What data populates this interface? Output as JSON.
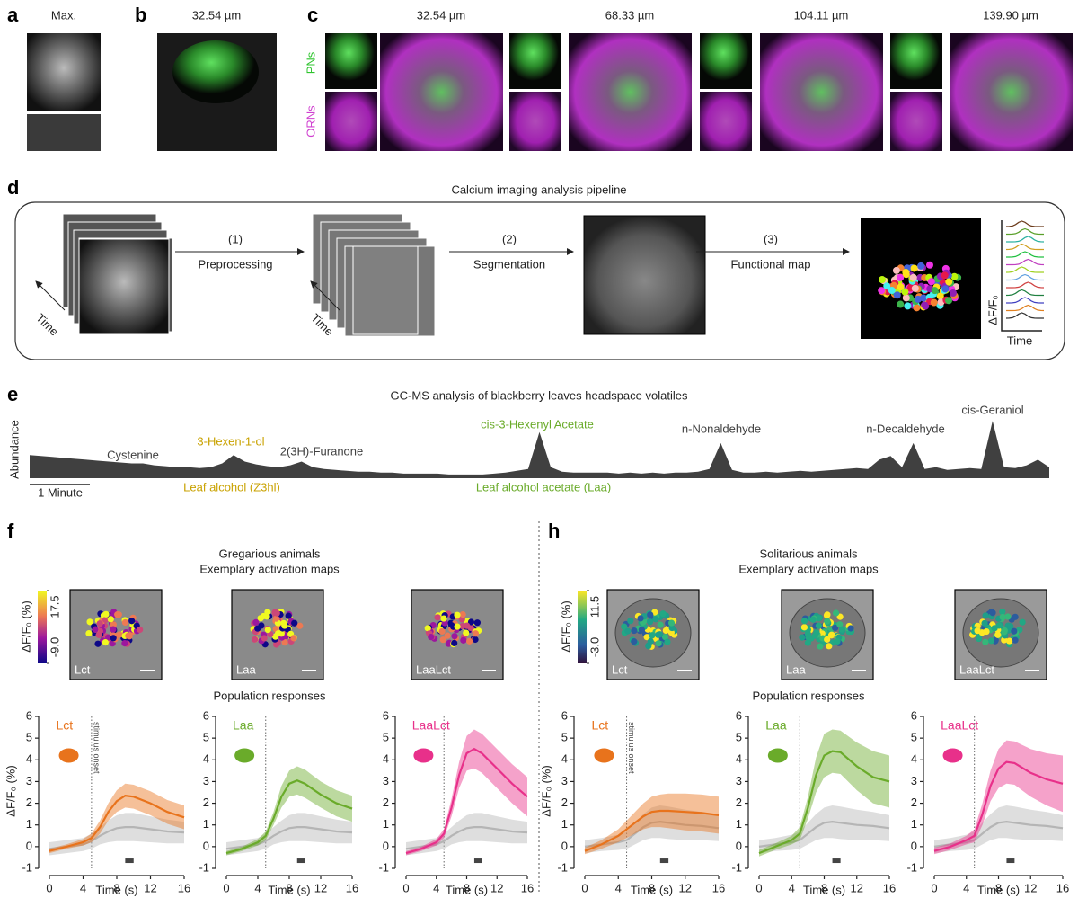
{
  "panel_labels": [
    "a",
    "b",
    "c",
    "d",
    "e",
    "f",
    "h"
  ],
  "a": {
    "label": "Max."
  },
  "b": {
    "depth": "32.54 µm"
  },
  "c": {
    "depths": [
      "32.54 µm",
      "68.33 µm",
      "104.11 µm",
      "139.90 µm"
    ],
    "channels": [
      "PNs",
      "ORNs"
    ]
  },
  "d": {
    "title": "Calcium imaging analysis pipeline",
    "steps": [
      {
        "number": "(1)",
        "name": "Preprocessing"
      },
      {
        "number": "(2)",
        "name": "Segmentation"
      },
      {
        "number": "(3)",
        "name": "Functional map"
      }
    ],
    "time": "Time",
    "trace_y": "ΔF/F₀",
    "trace_x": "Time"
  },
  "f": {
    "title": [
      "Gregarious animals",
      "Exemplary activation maps"
    ],
    "colorbar": {
      "label": "ΔF/F₀ (%)",
      "ticks": [
        17.5,
        {
          "value": -9,
          "label": "-9.0"
        }
      ]
    },
    "maps": [
      "Lct",
      "Laa",
      "LaaLct"
    ],
    "population_title": "Population responses"
  },
  "h": {
    "title": [
      "Solitarious animals",
      "Exemplary activation maps"
    ],
    "colorbar": {
      "label": "ΔF/F₀ (%)",
      "ticks": [
        11.5,
        {
          "value": -3,
          "label": "-3.0"
        }
      ]
    },
    "maps": [
      "Lct",
      "Laa",
      "LaaLct"
    ],
    "population_title": "Population responses"
  },
  "chart_data": [
    {
      "type": "area",
      "title": "GC-MS analysis of blackberry leaves headspace volatiles",
      "ylabel": "Abundance",
      "scale_label": "1 Minute",
      "color": "#404040",
      "ylim": [
        0,
        70
      ],
      "values": [
        25,
        24,
        23,
        22,
        21,
        20,
        19,
        18,
        17,
        16,
        16,
        14,
        13,
        12,
        12,
        11,
        12,
        16,
        25,
        18,
        15,
        13,
        12,
        14,
        18,
        12,
        10,
        9,
        8,
        7,
        7,
        6,
        6,
        5,
        5,
        5,
        5,
        4,
        4,
        4,
        4,
        5,
        6,
        8,
        10,
        50,
        12,
        7,
        6,
        6,
        6,
        6,
        5,
        6,
        5,
        6,
        5,
        6,
        6,
        7,
        10,
        38,
        9,
        6,
        6,
        7,
        6,
        7,
        8,
        7,
        8,
        9,
        10,
        11,
        10,
        20,
        24,
        12,
        38,
        10,
        12,
        9,
        10,
        11,
        10,
        62,
        12,
        11,
        14,
        20,
        12
      ],
      "annotations": [
        {
          "text": "Cystenine",
          "color": "#404040"
        },
        {
          "text": "3-Hexen-1-ol",
          "color": "#c9a200"
        },
        {
          "text": "2(3H)-Furanone",
          "color": "#404040"
        },
        {
          "text": "Leaf alcohol (Z3hl)",
          "color": "#c9a200"
        },
        {
          "text": "cis-3-Hexenyl Acetate",
          "color": "#6aab2a"
        },
        {
          "text": "Leaf alcohol acetate (Laa)",
          "color": "#6aab2a"
        },
        {
          "text": "n-Nonaldehyde",
          "color": "#404040"
        },
        {
          "text": "n-Decaldehyde",
          "color": "#404040"
        },
        {
          "text": "cis-Geraniol",
          "color": "#404040"
        }
      ]
    },
    {
      "type": "line",
      "xlabel": "Time (s)",
      "ylabel": "ΔF/F₀ (%)",
      "annotation": "stimulus onset",
      "stimulus_onset": 5,
      "stimulus_bar": [
        9,
        10
      ],
      "x": [
        0,
        2,
        4,
        5,
        6,
        7,
        8,
        9,
        10,
        12,
        14,
        16
      ],
      "xlim": [
        0,
        16
      ],
      "xticks": [
        0,
        4,
        8,
        12,
        16
      ],
      "ylim": [
        -1,
        6
      ],
      "yticks": [
        -1,
        0,
        1,
        2,
        3,
        4,
        5,
        6
      ],
      "series": [
        {
          "color": "#b5b5b5",
          "values": [
            -0.1,
            0,
            0.1,
            0.25,
            0.5,
            0.7,
            0.85,
            0.9,
            0.9,
            0.8,
            0.7,
            0.65
          ],
          "error": [
            0.3,
            0.3,
            0.3,
            0.35,
            0.4,
            0.5,
            0.6,
            0.65,
            0.65,
            0.6,
            0.55,
            0.5
          ]
        },
        {
          "name": "Lct",
          "color": "#e8731c",
          "values": [
            -0.2,
            0,
            0.2,
            0.4,
            0.9,
            1.6,
            2.1,
            2.35,
            2.3,
            2.0,
            1.6,
            1.35
          ],
          "error": [
            0.1,
            0.1,
            0.15,
            0.2,
            0.3,
            0.4,
            0.5,
            0.55,
            0.55,
            0.55,
            0.55,
            0.55
          ]
        }
      ]
    },
    {
      "type": "line",
      "xlabel": "Time (s)",
      "stimulus_onset": 5,
      "stimulus_bar": [
        9,
        10
      ],
      "x": [
        0,
        2,
        4,
        5,
        6,
        7,
        8,
        9,
        10,
        12,
        14,
        16
      ],
      "xlim": [
        0,
        16
      ],
      "xticks": [
        0,
        4,
        8,
        12,
        16
      ],
      "ylim": [
        -1,
        6
      ],
      "yticks": [
        -1,
        0,
        1,
        2,
        3,
        4,
        5,
        6
      ],
      "series": [
        {
          "color": "#b5b5b5",
          "values": [
            -0.1,
            0,
            0.1,
            0.25,
            0.5,
            0.7,
            0.85,
            0.9,
            0.9,
            0.8,
            0.7,
            0.65
          ],
          "error": [
            0.3,
            0.3,
            0.3,
            0.35,
            0.4,
            0.5,
            0.6,
            0.65,
            0.65,
            0.6,
            0.55,
            0.5
          ]
        },
        {
          "name": "Laa",
          "color": "#6aab2a",
          "values": [
            -0.3,
            -0.1,
            0.2,
            0.5,
            1.3,
            2.3,
            2.9,
            3.05,
            2.9,
            2.4,
            2.0,
            1.75
          ],
          "error": [
            0.1,
            0.1,
            0.15,
            0.2,
            0.3,
            0.5,
            0.6,
            0.65,
            0.65,
            0.6,
            0.6,
            0.6
          ]
        }
      ]
    },
    {
      "type": "line",
      "xlabel": "Time (s)",
      "stimulus_onset": 5,
      "stimulus_bar": [
        9,
        10
      ],
      "x": [
        0,
        2,
        4,
        5,
        6,
        7,
        8,
        9,
        10,
        12,
        14,
        16
      ],
      "xlim": [
        0,
        16
      ],
      "xticks": [
        0,
        4,
        8,
        12,
        16
      ],
      "ylim": [
        -1,
        6
      ],
      "yticks": [
        -1,
        0,
        1,
        2,
        3,
        4,
        5,
        6
      ],
      "series": [
        {
          "color": "#b5b5b5",
          "values": [
            -0.1,
            0,
            0.1,
            0.25,
            0.5,
            0.7,
            0.85,
            0.9,
            0.9,
            0.8,
            0.7,
            0.65
          ],
          "error": [
            0.3,
            0.3,
            0.3,
            0.35,
            0.4,
            0.5,
            0.6,
            0.65,
            0.65,
            0.6,
            0.55,
            0.5
          ]
        },
        {
          "name": "LaaLct",
          "color": "#e8308a",
          "values": [
            -0.3,
            -0.1,
            0.2,
            0.6,
            1.8,
            3.3,
            4.3,
            4.5,
            4.3,
            3.6,
            2.9,
            2.3
          ],
          "error": [
            0.1,
            0.1,
            0.15,
            0.2,
            0.4,
            0.6,
            0.8,
            0.9,
            0.9,
            0.9,
            0.9,
            0.9
          ]
        }
      ]
    },
    {
      "type": "line",
      "xlabel": "Time (s)",
      "ylabel": "ΔF/F₀ (%)",
      "annotation": "stimulus onset",
      "stimulus_onset": 5,
      "stimulus_bar": [
        9,
        10
      ],
      "x": [
        0,
        2,
        4,
        5,
        6,
        7,
        8,
        9,
        10,
        12,
        14,
        16
      ],
      "xlim": [
        0,
        16
      ],
      "xticks": [
        0,
        4,
        8,
        12,
        16
      ],
      "ylim": [
        -1,
        6
      ],
      "yticks": [
        -1,
        0,
        1,
        2,
        3,
        4,
        5,
        6
      ],
      "series": [
        {
          "color": "#b5b5b5",
          "values": [
            0,
            0.1,
            0.2,
            0.3,
            0.6,
            0.9,
            1.1,
            1.15,
            1.1,
            1.0,
            0.95,
            0.85
          ],
          "error": [
            0.3,
            0.3,
            0.35,
            0.4,
            0.5,
            0.6,
            0.7,
            0.75,
            0.75,
            0.7,
            0.65,
            0.6
          ]
        },
        {
          "name": "Lct",
          "color": "#e8731c",
          "values": [
            -0.2,
            0.1,
            0.5,
            0.8,
            1.1,
            1.4,
            1.6,
            1.65,
            1.65,
            1.6,
            1.55,
            1.45
          ],
          "error": [
            0.15,
            0.2,
            0.3,
            0.4,
            0.5,
            0.6,
            0.7,
            0.75,
            0.8,
            0.85,
            0.85,
            0.85
          ]
        }
      ]
    },
    {
      "type": "line",
      "xlabel": "Time (s)",
      "stimulus_onset": 5,
      "stimulus_bar": [
        9,
        10
      ],
      "x": [
        0,
        2,
        4,
        5,
        6,
        7,
        8,
        9,
        10,
        12,
        14,
        16
      ],
      "xlim": [
        0,
        16
      ],
      "xticks": [
        0,
        4,
        8,
        12,
        16
      ],
      "ylim": [
        -1,
        6
      ],
      "yticks": [
        -1,
        0,
        1,
        2,
        3,
        4,
        5,
        6
      ],
      "series": [
        {
          "color": "#b5b5b5",
          "values": [
            0,
            0.1,
            0.2,
            0.3,
            0.6,
            0.9,
            1.1,
            1.15,
            1.1,
            1.0,
            0.95,
            0.85
          ],
          "error": [
            0.3,
            0.3,
            0.35,
            0.4,
            0.5,
            0.6,
            0.7,
            0.75,
            0.75,
            0.7,
            0.65,
            0.6
          ]
        },
        {
          "name": "Laa",
          "color": "#6aab2a",
          "values": [
            -0.3,
            0,
            0.3,
            0.6,
            1.8,
            3.3,
            4.2,
            4.4,
            4.35,
            3.7,
            3.2,
            3.0
          ],
          "error": [
            0.15,
            0.15,
            0.2,
            0.3,
            0.5,
            0.8,
            1.0,
            1.0,
            1.0,
            1.1,
            1.2,
            1.2
          ]
        }
      ]
    },
    {
      "type": "line",
      "xlabel": "Time (s)",
      "stimulus_onset": 5,
      "stimulus_bar": [
        9,
        10
      ],
      "x": [
        0,
        2,
        4,
        5,
        6,
        7,
        8,
        9,
        10,
        12,
        14,
        16
      ],
      "xlim": [
        0,
        16
      ],
      "xticks": [
        0,
        4,
        8,
        12,
        16
      ],
      "ylim": [
        -1,
        6
      ],
      "yticks": [
        -1,
        0,
        1,
        2,
        3,
        4,
        5,
        6
      ],
      "series": [
        {
          "color": "#b5b5b5",
          "values": [
            0,
            0.1,
            0.2,
            0.3,
            0.6,
            0.9,
            1.1,
            1.15,
            1.1,
            1.0,
            0.95,
            0.85
          ],
          "error": [
            0.3,
            0.3,
            0.35,
            0.4,
            0.5,
            0.6,
            0.7,
            0.75,
            0.75,
            0.7,
            0.65,
            0.6
          ]
        },
        {
          "name": "LaaLct",
          "color": "#e8308a",
          "values": [
            -0.2,
            0,
            0.3,
            0.5,
            1.5,
            2.8,
            3.6,
            3.9,
            3.85,
            3.4,
            3.1,
            2.9
          ],
          "error": [
            0.15,
            0.15,
            0.2,
            0.3,
            0.5,
            0.7,
            0.9,
            1.0,
            1.0,
            1.1,
            1.2,
            1.3
          ]
        }
      ]
    }
  ]
}
